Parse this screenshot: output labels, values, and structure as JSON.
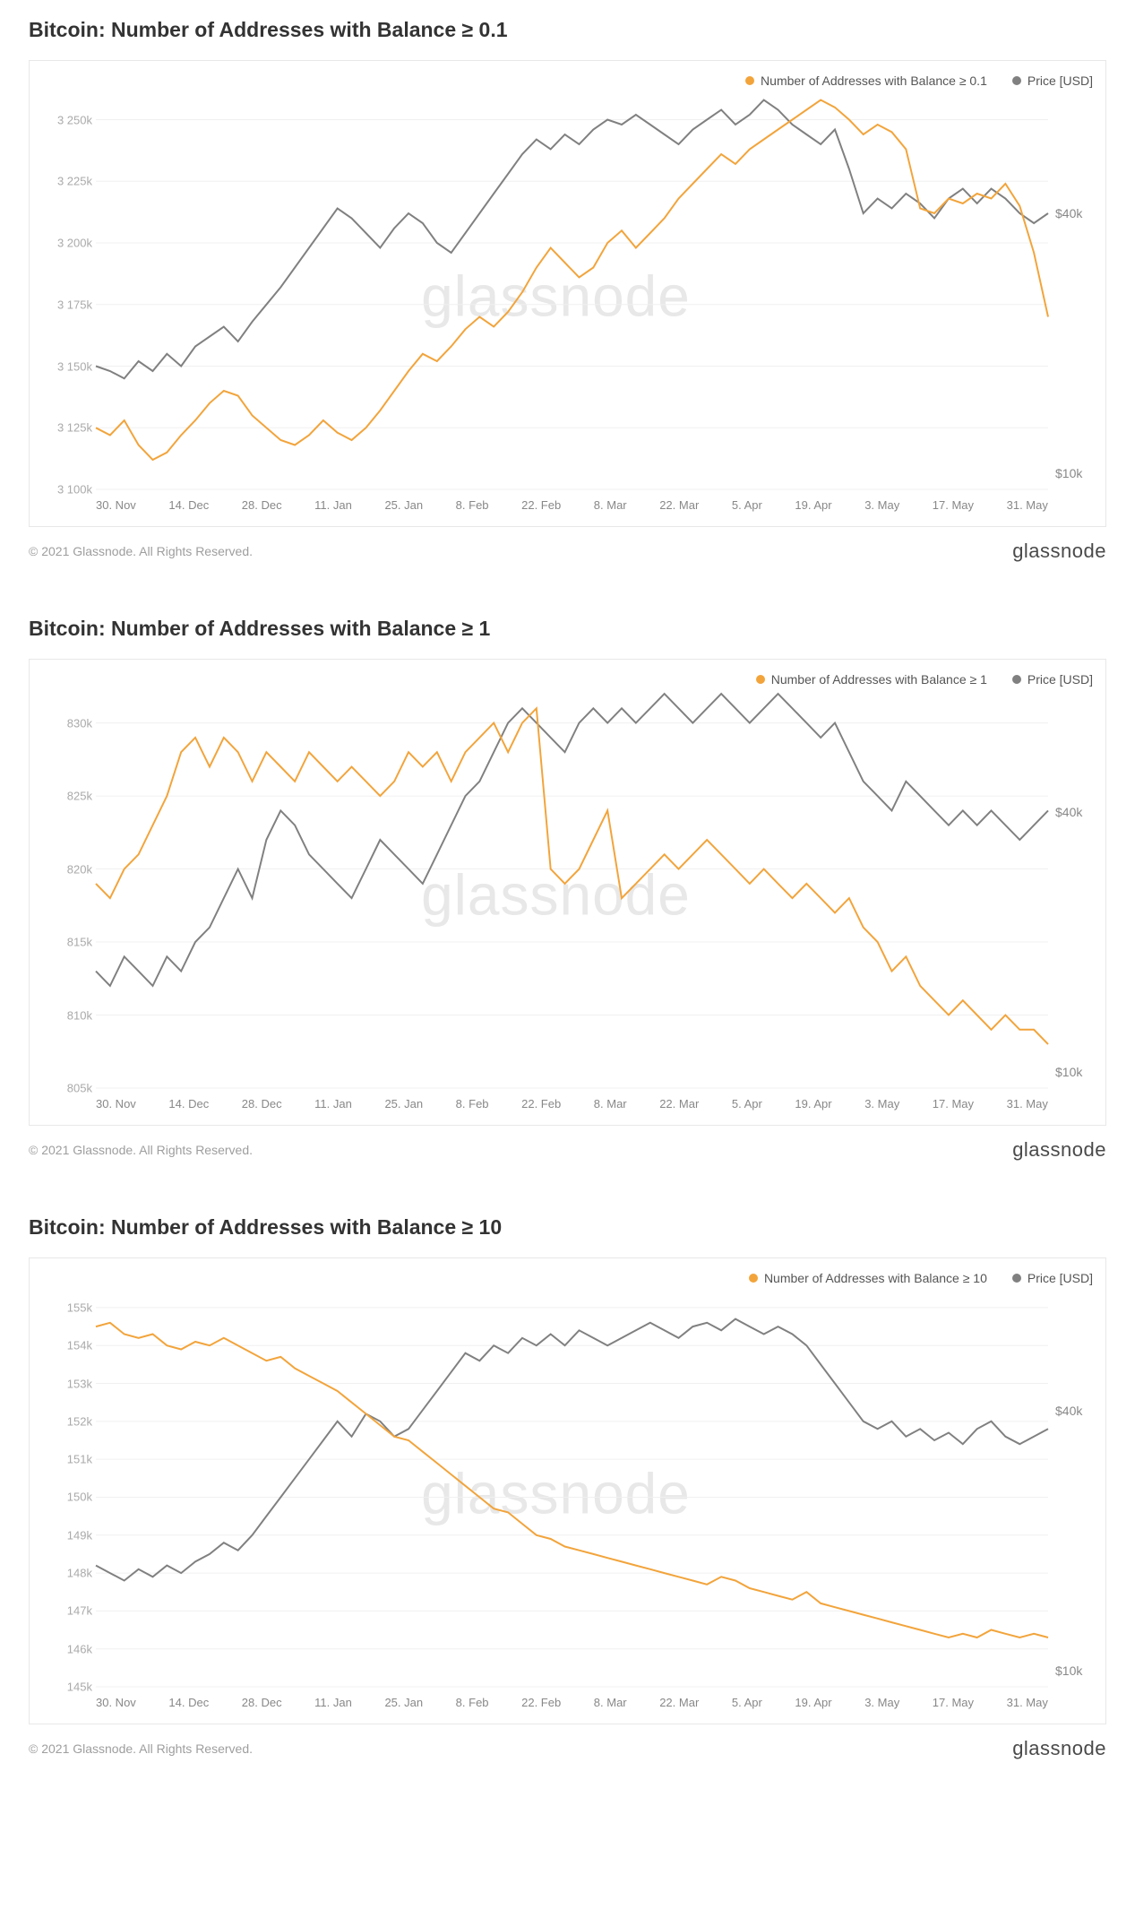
{
  "brand": "glassnode",
  "copyright": "© 2021 Glassnode. All Rights Reserved.",
  "watermark": "glassnode",
  "colors": {
    "series": "#f2a43b",
    "price": "#808080",
    "grid": "#f0f0f0",
    "axis_text": "#aaaaaa",
    "border": "#e8e8e8",
    "background": "#ffffff"
  },
  "x_ticks": [
    "30. Nov",
    "14. Dec",
    "28. Dec",
    "11. Jan",
    "25. Jan",
    "8. Feb",
    "22. Feb",
    "8. Mar",
    "22. Mar",
    "5. Apr",
    "19. Apr",
    "3. May",
    "17. May",
    "31. May"
  ],
  "right_axis": {
    "labels": [
      "$40k",
      "$10k"
    ],
    "positions_pct": [
      30,
      96
    ]
  },
  "charts": [
    {
      "id": "c1",
      "title": "Bitcoin: Number of Addresses with Balance ≥ 0.1",
      "legend_series": "Number of Addresses with Balance ≥ 0.1",
      "legend_price": "Price [USD]",
      "type": "line",
      "y_left": {
        "min": 3100,
        "max": 3260,
        "ticks": [
          3250,
          3225,
          3200,
          3175,
          3150,
          3125,
          3100
        ],
        "tick_labels": [
          "3 250k",
          "3 225k",
          "3 200k",
          "3 175k",
          "3 150k",
          "3 125k",
          "3 100k"
        ]
      },
      "series": [
        3125,
        3122,
        3128,
        3118,
        3112,
        3115,
        3122,
        3128,
        3135,
        3140,
        3138,
        3130,
        3125,
        3120,
        3118,
        3122,
        3128,
        3123,
        3120,
        3125,
        3132,
        3140,
        3148,
        3155,
        3152,
        3158,
        3165,
        3170,
        3166,
        3172,
        3180,
        3190,
        3198,
        3192,
        3186,
        3190,
        3200,
        3205,
        3198,
        3204,
        3210,
        3218,
        3224,
        3230,
        3236,
        3232,
        3238,
        3242,
        3246,
        3250,
        3254,
        3258,
        3255,
        3250,
        3244,
        3248,
        3245,
        3238,
        3214,
        3212,
        3218,
        3216,
        3220,
        3218,
        3224,
        3215,
        3196,
        3170
      ],
      "price": [
        3150,
        3148,
        3145,
        3152,
        3148,
        3155,
        3150,
        3158,
        3162,
        3166,
        3160,
        3168,
        3175,
        3182,
        3190,
        3198,
        3206,
        3214,
        3210,
        3204,
        3198,
        3206,
        3212,
        3208,
        3200,
        3196,
        3204,
        3212,
        3220,
        3228,
        3236,
        3242,
        3238,
        3244,
        3240,
        3246,
        3250,
        3248,
        3252,
        3248,
        3244,
        3240,
        3246,
        3250,
        3254,
        3248,
        3252,
        3258,
        3254,
        3248,
        3244,
        3240,
        3246,
        3230,
        3212,
        3218,
        3214,
        3220,
        3216,
        3210,
        3218,
        3222,
        3216,
        3222,
        3218,
        3212,
        3208,
        3212
      ]
    },
    {
      "id": "c2",
      "title": "Bitcoin: Number of Addresses with Balance ≥ 1",
      "legend_series": "Number of Addresses with Balance ≥ 1",
      "legend_price": "Price [USD]",
      "type": "line",
      "y_left": {
        "min": 805,
        "max": 832,
        "ticks": [
          830,
          825,
          820,
          815,
          810,
          805
        ],
        "tick_labels": [
          "830k",
          "825k",
          "820k",
          "815k",
          "810k",
          "805k"
        ]
      },
      "series": [
        819,
        818,
        820,
        821,
        823,
        825,
        828,
        829,
        827,
        829,
        828,
        826,
        828,
        827,
        826,
        828,
        827,
        826,
        827,
        826,
        825,
        826,
        828,
        827,
        828,
        826,
        828,
        829,
        830,
        828,
        830,
        831,
        820,
        819,
        820,
        822,
        824,
        818,
        819,
        820,
        821,
        820,
        821,
        822,
        821,
        820,
        819,
        820,
        819,
        818,
        819,
        818,
        817,
        818,
        816,
        815,
        813,
        814,
        812,
        811,
        810,
        811,
        810,
        809,
        810,
        809,
        809,
        808
      ],
      "price": [
        813,
        812,
        814,
        813,
        812,
        814,
        813,
        815,
        816,
        818,
        820,
        818,
        822,
        824,
        823,
        821,
        820,
        819,
        818,
        820,
        822,
        821,
        820,
        819,
        821,
        823,
        825,
        826,
        828,
        830,
        831,
        830,
        829,
        828,
        830,
        831,
        830,
        831,
        830,
        831,
        832,
        831,
        830,
        831,
        832,
        831,
        830,
        831,
        832,
        831,
        830,
        829,
        830,
        828,
        826,
        825,
        824,
        826,
        825,
        824,
        823,
        824,
        823,
        824,
        823,
        822,
        823,
        824
      ]
    },
    {
      "id": "c3",
      "title": "Bitcoin: Number of Addresses with Balance ≥ 10",
      "legend_series": "Number of Addresses with Balance ≥ 10",
      "legend_price": "Price [USD]",
      "type": "line",
      "y_left": {
        "min": 145,
        "max": 155.4,
        "ticks": [
          155,
          154,
          153,
          152,
          151,
          150,
          149,
          148,
          147,
          146,
          145
        ],
        "tick_labels": [
          "155k",
          "154k",
          "153k",
          "152k",
          "151k",
          "150k",
          "149k",
          "148k",
          "147k",
          "146k",
          "145k"
        ]
      },
      "series": [
        154.5,
        154.6,
        154.3,
        154.2,
        154.3,
        154.0,
        153.9,
        154.1,
        154.0,
        154.2,
        154.0,
        153.8,
        153.6,
        153.7,
        153.4,
        153.2,
        153.0,
        152.8,
        152.5,
        152.2,
        151.9,
        151.6,
        151.5,
        151.2,
        150.9,
        150.6,
        150.3,
        150.0,
        149.7,
        149.6,
        149.3,
        149.0,
        148.9,
        148.7,
        148.6,
        148.5,
        148.4,
        148.3,
        148.2,
        148.1,
        148.0,
        147.9,
        147.8,
        147.7,
        147.9,
        147.8,
        147.6,
        147.5,
        147.4,
        147.3,
        147.5,
        147.2,
        147.1,
        147.0,
        146.9,
        146.8,
        146.7,
        146.6,
        146.5,
        146.4,
        146.3,
        146.4,
        146.3,
        146.5,
        146.4,
        146.3,
        146.4,
        146.3
      ],
      "price": [
        148.2,
        148.0,
        147.8,
        148.1,
        147.9,
        148.2,
        148.0,
        148.3,
        148.5,
        148.8,
        148.6,
        149.0,
        149.5,
        150.0,
        150.5,
        151.0,
        151.5,
        152.0,
        151.6,
        152.2,
        152.0,
        151.6,
        151.8,
        152.3,
        152.8,
        153.3,
        153.8,
        153.6,
        154.0,
        153.8,
        154.2,
        154.0,
        154.3,
        154.0,
        154.4,
        154.2,
        154.0,
        154.2,
        154.4,
        154.6,
        154.4,
        154.2,
        154.5,
        154.6,
        154.4,
        154.7,
        154.5,
        154.3,
        154.5,
        154.3,
        154.0,
        153.5,
        153.0,
        152.5,
        152.0,
        151.8,
        152.0,
        151.6,
        151.8,
        151.5,
        151.7,
        151.4,
        151.8,
        152.0,
        151.6,
        151.4,
        151.6,
        151.8
      ]
    }
  ]
}
